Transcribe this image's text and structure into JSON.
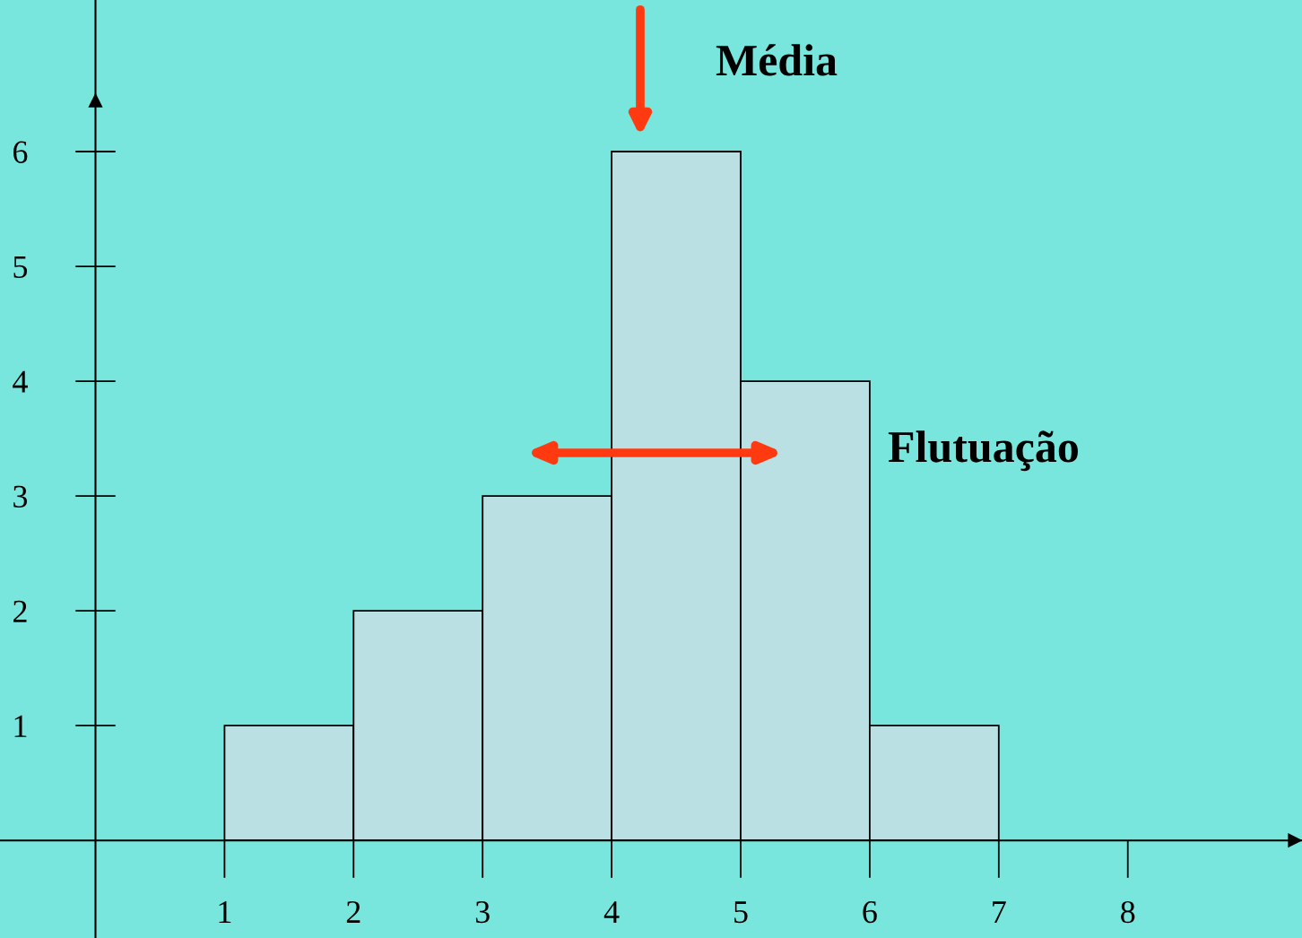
{
  "chart_data": {
    "type": "histogram",
    "bins": [
      1,
      2,
      3,
      4,
      5,
      6,
      7
    ],
    "values": [
      1,
      2,
      3,
      6,
      4,
      1
    ],
    "color": "#bbe0e3",
    "xlim": [
      -0.74,
      9.35
    ],
    "ylim": [
      -0.85,
      7.32
    ],
    "xticks": [
      1,
      2,
      3,
      4,
      5,
      6,
      7,
      8
    ],
    "yticks": [
      1,
      2,
      3,
      4,
      5,
      6
    ],
    "grid": false,
    "legend": false,
    "annotations": [
      "Média",
      "Flutuação"
    ]
  }
}
